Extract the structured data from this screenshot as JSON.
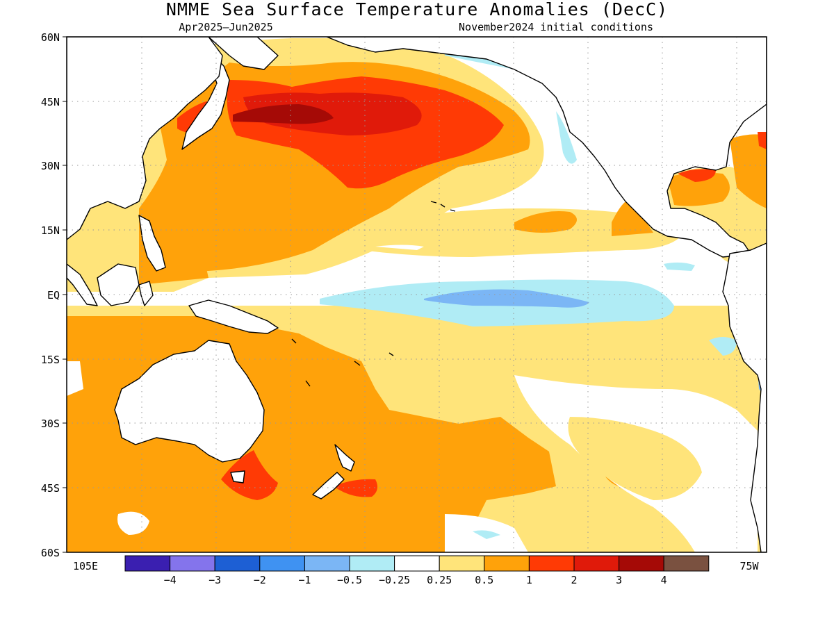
{
  "title": "NMME Sea Surface Temperature Anomalies (DecC)",
  "subtitle_left": "Apr2025–Jun2025",
  "subtitle_right": "November2024 initial conditions",
  "lat_labels": [
    "60N",
    "45N",
    "30N",
    "15N",
    "EQ",
    "15S",
    "30S",
    "45S",
    "60S"
  ],
  "lon_left_label": "105E",
  "lon_right_label": "75W",
  "colorbar": {
    "colors": [
      "#3a1fb0",
      "#8474ec",
      "#1d5fd4",
      "#3f92f2",
      "#7bb6f5",
      "#b0ecf5",
      "#ffffff",
      "#ffe47a",
      "#ffa20a",
      "#ff3a05",
      "#e01a0a",
      "#a50a06",
      "#7a5140"
    ],
    "labels": [
      "−4",
      "−3",
      "−2",
      "−1",
      "−0.5",
      "−0.25",
      "0.25",
      "0.5",
      "1",
      "2",
      "3",
      "4"
    ]
  }
}
